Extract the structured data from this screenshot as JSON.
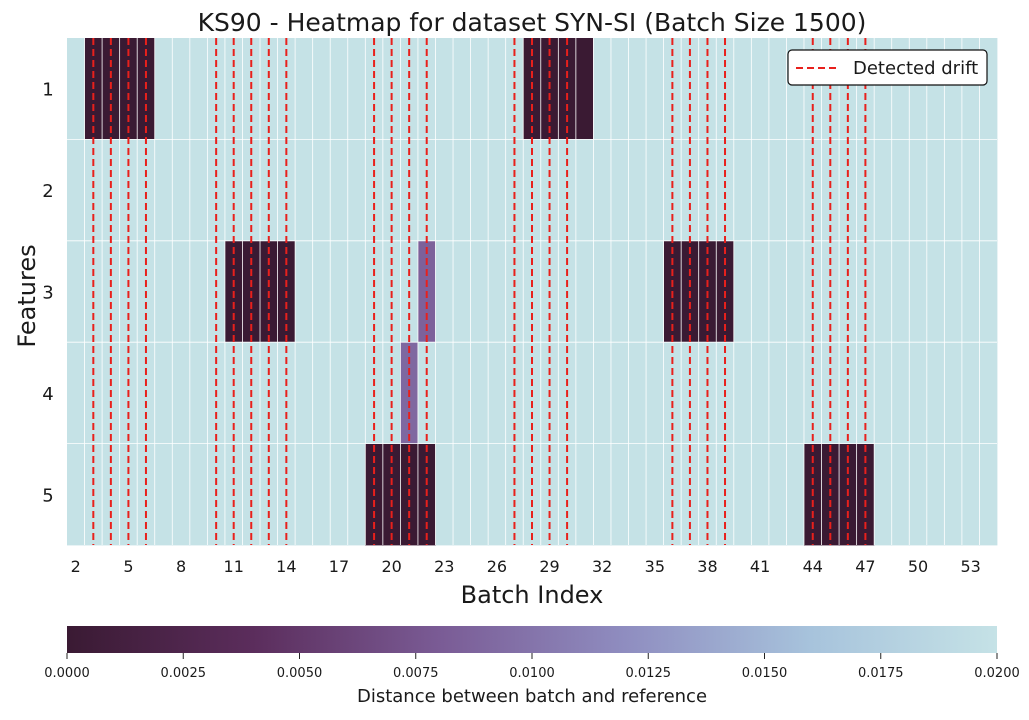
{
  "chart_data": {
    "type": "heatmap",
    "title": "KS90 - Heatmap for dataset SYN-SI (Batch Size 1500)",
    "xlabel": "Batch Index",
    "ylabel": "Features",
    "x": [
      2,
      3,
      4,
      5,
      6,
      7,
      8,
      9,
      10,
      11,
      12,
      13,
      14,
      15,
      16,
      17,
      18,
      19,
      20,
      21,
      22,
      23,
      24,
      25,
      26,
      27,
      28,
      29,
      30,
      31,
      32,
      33,
      34,
      35,
      36,
      37,
      38,
      39,
      40,
      41,
      42,
      43,
      44,
      45,
      46,
      47,
      48,
      49,
      50,
      51,
      52,
      53,
      54
    ],
    "x_tick_labels": [
      "2",
      "5",
      "8",
      "11",
      "14",
      "17",
      "20",
      "23",
      "26",
      "29",
      "32",
      "35",
      "38",
      "41",
      "44",
      "47",
      "50",
      "53"
    ],
    "y_tick_labels": [
      "1",
      "2",
      "3",
      "4",
      "5"
    ],
    "values": [
      [
        0.02,
        0,
        0,
        0,
        0,
        0.02,
        0.02,
        0.02,
        0.02,
        0.02,
        0.02,
        0.02,
        0.02,
        0.02,
        0.02,
        0.02,
        0.02,
        0.02,
        0.02,
        0.02,
        0.02,
        0.02,
        0.02,
        0.02,
        0.02,
        0.02,
        0,
        0,
        0,
        0,
        0.02,
        0.02,
        0.02,
        0.02,
        0.02,
        0.02,
        0.02,
        0.02,
        0.02,
        0.02,
        0.02,
        0.02,
        0.02,
        0.02,
        0.02,
        0.02,
        0.02,
        0.02,
        0.02,
        0.02,
        0.02,
        0.02,
        0.02
      ],
      [
        0.02,
        0.02,
        0.02,
        0.02,
        0.02,
        0.02,
        0.02,
        0.02,
        0.02,
        0.02,
        0.02,
        0.02,
        0.02,
        0.02,
        0.02,
        0.02,
        0.02,
        0.02,
        0.02,
        0.02,
        0.02,
        0.02,
        0.02,
        0.02,
        0.02,
        0.02,
        0.02,
        0.02,
        0.02,
        0.02,
        0.02,
        0.02,
        0.02,
        0.02,
        0.02,
        0.02,
        0.02,
        0.02,
        0.02,
        0.02,
        0.02,
        0.02,
        0.02,
        0.02,
        0.02,
        0.02,
        0.02,
        0.02,
        0.02,
        0.02,
        0.02,
        0.02,
        0.02
      ],
      [
        0.02,
        0.02,
        0.02,
        0.02,
        0.02,
        0.02,
        0.02,
        0.02,
        0.02,
        0,
        0,
        0,
        0,
        0.02,
        0.02,
        0.02,
        0.02,
        0.02,
        0.02,
        0.02,
        0.0085,
        0.02,
        0.02,
        0.02,
        0.02,
        0.02,
        0.02,
        0.02,
        0.02,
        0.02,
        0.02,
        0.02,
        0.02,
        0.02,
        0,
        0,
        0,
        0,
        0.02,
        0.02,
        0.02,
        0.02,
        0.02,
        0.02,
        0.02,
        0.02,
        0.02,
        0.02,
        0.02,
        0.02,
        0.02,
        0.02,
        0.02
      ],
      [
        0.02,
        0.02,
        0.02,
        0.02,
        0.02,
        0.02,
        0.02,
        0.02,
        0.02,
        0.02,
        0.02,
        0.02,
        0.02,
        0.02,
        0.02,
        0.02,
        0.02,
        0.02,
        0.02,
        0.009,
        0.02,
        0.02,
        0.02,
        0.02,
        0.02,
        0.02,
        0.02,
        0.02,
        0.02,
        0.02,
        0.02,
        0.02,
        0.02,
        0.02,
        0.02,
        0.02,
        0.02,
        0.02,
        0.02,
        0.02,
        0.02,
        0.02,
        0.02,
        0.02,
        0.02,
        0.02,
        0.02,
        0.02,
        0.02,
        0.02,
        0.02,
        0.02,
        0.02
      ],
      [
        0.02,
        0.02,
        0.02,
        0.02,
        0.02,
        0.02,
        0.02,
        0.02,
        0.02,
        0.02,
        0.02,
        0.02,
        0.02,
        0.02,
        0.02,
        0.02,
        0.02,
        0,
        0,
        0,
        0,
        0.02,
        0.02,
        0.02,
        0.02,
        0.02,
        0.02,
        0.02,
        0.02,
        0.02,
        0.02,
        0.02,
        0.02,
        0.02,
        0.02,
        0.02,
        0.02,
        0.02,
        0.02,
        0.02,
        0.02,
        0.02,
        0,
        0,
        0,
        0,
        0.02,
        0.02,
        0.02,
        0.02,
        0.02,
        0.02,
        0.02
      ]
    ],
    "drift_points": [
      3,
      4,
      5,
      6,
      10,
      11,
      12,
      13,
      14,
      19,
      20,
      21,
      22,
      27,
      28,
      29,
      30,
      36,
      37,
      38,
      39,
      44,
      45,
      46,
      47
    ],
    "legend": {
      "label": "Detected drift",
      "position": "top-right",
      "color": "#e8201c"
    },
    "colorbar": {
      "label": "Distance between batch and reference",
      "range": [
        0,
        0.02
      ],
      "tick_labels": [
        "0.0000",
        "0.0025",
        "0.0050",
        "0.0075",
        "0.0100",
        "0.0125",
        "0.0150",
        "0.0175",
        "0.0200"
      ],
      "color_stops": [
        "#3a1a33",
        "#5b2d5c",
        "#7a5b95",
        "#8f8dc0",
        "#a7c3dc",
        "#c5e2e6"
      ]
    },
    "grid": true
  }
}
